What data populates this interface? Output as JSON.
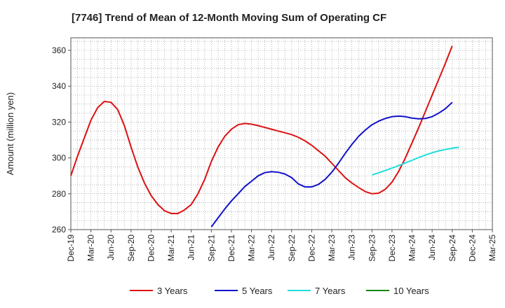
{
  "chart_data": {
    "type": "line",
    "title": "[7746]  Trend of Mean of 12-Month Moving Sum of Operating CF",
    "xlabel": "",
    "ylabel": "Amount (million yen)",
    "ylim": [
      260,
      367
    ],
    "yticks": [
      260,
      280,
      300,
      320,
      340,
      360
    ],
    "grid": true,
    "legend_position": "bottom",
    "x_tick_labels": [
      "Dec-19",
      "Mar-20",
      "Jun-20",
      "Sep-20",
      "Dec-20",
      "Mar-21",
      "Jun-21",
      "Sep-21",
      "Dec-21",
      "Mar-22",
      "Jun-22",
      "Sep-22",
      "Dec-22",
      "Mar-23",
      "Jun-23",
      "Sep-23",
      "Dec-23",
      "Mar-24",
      "Jun-24",
      "Sep-24",
      "Dec-24",
      "Mar-25"
    ],
    "x_months_count": 64,
    "series": [
      {
        "name": "3 Years",
        "color": "#dd1111",
        "start_index": 0,
        "values": [
          290,
          301,
          311,
          321,
          328,
          331.5,
          331,
          327,
          318,
          306,
          295,
          286,
          279,
          274,
          270.5,
          269,
          269,
          271,
          274,
          280,
          288,
          298,
          306,
          312,
          316,
          318.5,
          319.2,
          318.8,
          318,
          317,
          316,
          315,
          314,
          313,
          311.5,
          309.5,
          307,
          304,
          301,
          297,
          293,
          289,
          286,
          283.5,
          281.2,
          280,
          280.3,
          282.5,
          286.5,
          292.5,
          300,
          308.5,
          317,
          326,
          335,
          344,
          353,
          362.5
        ]
      },
      {
        "name": "5 Years",
        "color": "#1111cc",
        "start_index": 21,
        "values": [
          261.5,
          266.5,
          271.5,
          276,
          280,
          284,
          287,
          290,
          291.8,
          292.3,
          292,
          291,
          289,
          285.5,
          283.8,
          283.8,
          285.2,
          288,
          292,
          297,
          302.5,
          307.5,
          312,
          315.5,
          318.5,
          320.5,
          322,
          323,
          323.3,
          323,
          322.2,
          321.8,
          322,
          323,
          325,
          327.5,
          331
        ]
      },
      {
        "name": "7 Years",
        "color": "#22dddd",
        "start_index": 45,
        "values": [
          290.5,
          291.7,
          293,
          294.3,
          295.7,
          297.2,
          298.7,
          300.2,
          301.6,
          302.9,
          303.9,
          304.7,
          305.4,
          306
        ]
      },
      {
        "name": "10 Years",
        "color": "#118811",
        "start_index": 0,
        "values": []
      }
    ]
  }
}
